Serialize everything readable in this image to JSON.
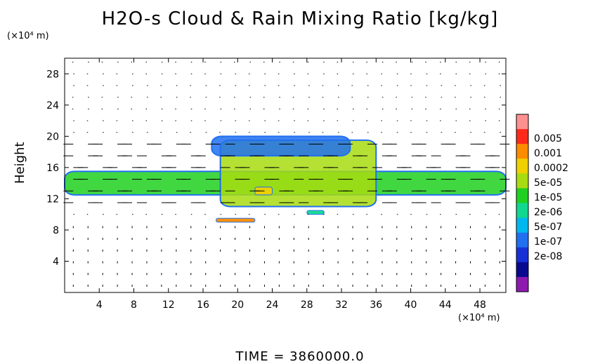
{
  "chart_data": {
    "type": "heatmap",
    "title": "H2O-s Cloud & Rain Mixing Ratio [kg/kg]",
    "xlabel": "(×10⁴ m)",
    "ylabel": "Height",
    "yunit": "(×10⁴ m)",
    "xlim": [
      0,
      51
    ],
    "ylim": [
      0,
      30
    ],
    "x_ticks": [
      4,
      8,
      12,
      16,
      20,
      24,
      28,
      32,
      36,
      40,
      44,
      48
    ],
    "y_ticks": [
      4,
      8,
      12,
      16,
      20,
      24,
      28
    ],
    "colorbar": {
      "labels": [
        "0.005",
        "0.001",
        "0.0002",
        "5e-05",
        "1e-05",
        "2e-06",
        "5e-07",
        "1e-07",
        "2e-08"
      ],
      "colors": [
        "#ff9090",
        "#ff2a1a",
        "#ff8c00",
        "#f0d000",
        "#a8dc10",
        "#20d020",
        "#10d890",
        "#00b8f0",
        "#2070f0",
        "#1830d8",
        "#0a0a90",
        "#8e1ab0"
      ]
    },
    "cloud_layers": [
      {
        "x": [
          0,
          51
        ],
        "y": [
          12.5,
          15.5
        ],
        "level": "1e-05"
      },
      {
        "x": [
          18,
          36
        ],
        "y": [
          11,
          19.5
        ],
        "level": "5e-05"
      },
      {
        "x": [
          22,
          24
        ],
        "y": [
          12.5,
          13.5
        ],
        "level": "0.0002"
      },
      {
        "x": [
          17,
          33
        ],
        "y": [
          17.5,
          20
        ],
        "level": "1e-07"
      },
      {
        "x": [
          17.5,
          22
        ],
        "y": [
          9,
          9.5
        ],
        "level": "0.001"
      },
      {
        "x": [
          28,
          30
        ],
        "y": [
          10,
          10.5
        ],
        "level": "2e-06"
      }
    ],
    "vector_field": "wind vectors overlaid on regular grid"
  },
  "footer": {
    "time_label": "TIME  =  3860000.0"
  }
}
